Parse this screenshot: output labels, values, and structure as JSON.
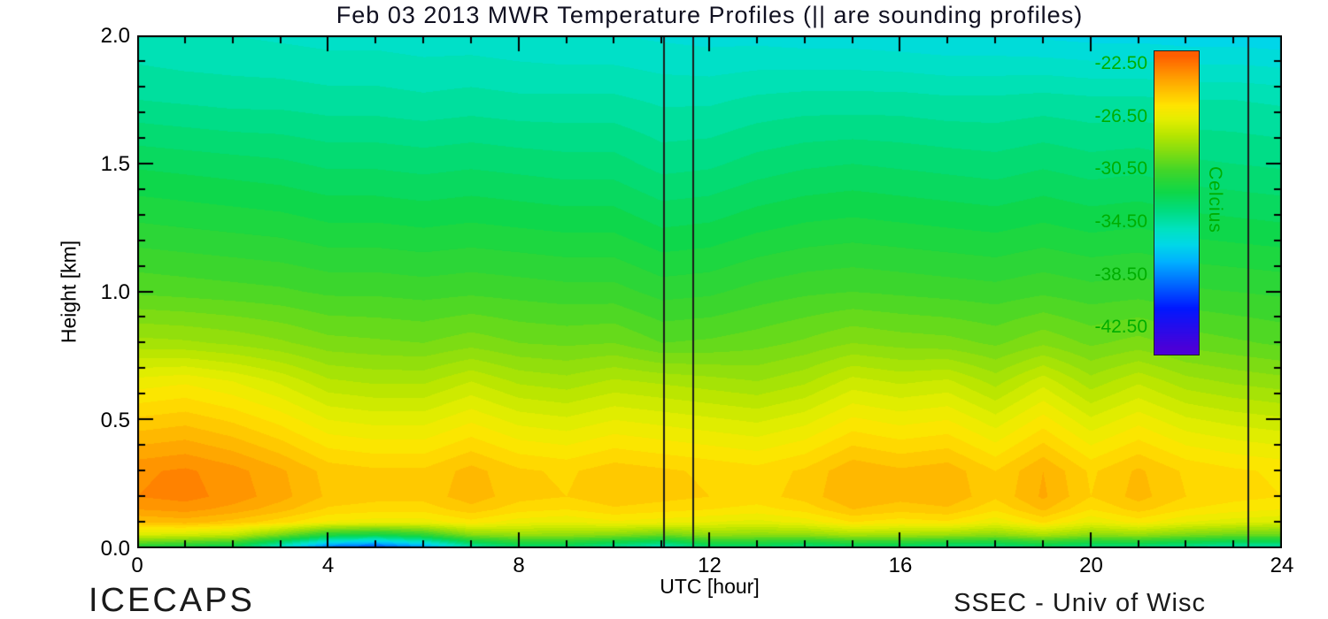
{
  "page": {
    "footer_left": "ICECAPS",
    "footer_right": "SSEC - Univ of Wisc"
  },
  "colorbar": {
    "unit": "Celcius",
    "label_color": "#00ae00",
    "top_value": -21.5,
    "bottom_value": -44.5,
    "tick_labels": [
      {
        "value": -22.5,
        "label": "-22.50"
      },
      {
        "value": -26.5,
        "label": "-26.50"
      },
      {
        "value": -30.5,
        "label": "-30.50"
      },
      {
        "value": -34.5,
        "label": "-34.50"
      },
      {
        "value": -38.5,
        "label": "-38.50"
      },
      {
        "value": -42.5,
        "label": "-42.50"
      }
    ]
  },
  "chart_data": {
    "type": "heatmap",
    "title": "Feb 03 2013 MWR Temperature Profiles (|| are sounding profiles)",
    "xlabel": "UTC [hour]",
    "ylabel": "Height [km]",
    "value_unit": "Celcius",
    "x_range_hours": [
      0,
      24
    ],
    "y_range_km": [
      0.0,
      2.0
    ],
    "x_major_ticks": [
      {
        "value": 0,
        "label": "0"
      },
      {
        "value": 4,
        "label": "4"
      },
      {
        "value": 8,
        "label": "8"
      },
      {
        "value": 12,
        "label": "12"
      },
      {
        "value": 16,
        "label": "16"
      },
      {
        "value": 20,
        "label": "20"
      },
      {
        "value": 24,
        "label": "24"
      }
    ],
    "x_minor_step": 1,
    "y_major_ticks": [
      {
        "value": 0.0,
        "label": "0.0"
      },
      {
        "value": 0.5,
        "label": "0.5"
      },
      {
        "value": 1.0,
        "label": "1.0"
      },
      {
        "value": 1.5,
        "label": "1.5"
      },
      {
        "value": 2.0,
        "label": "2.0"
      }
    ],
    "y_minor_step": 0.1,
    "contour_interval_c": 0.5,
    "sounding_profile_hours": [
      11.05,
      11.65,
      23.3
    ],
    "x_hours": [
      0,
      1,
      2,
      3,
      4,
      5,
      6,
      7,
      8,
      9,
      10,
      11,
      12,
      13,
      14,
      15,
      16,
      17,
      18,
      19,
      20,
      21,
      22,
      23,
      24
    ],
    "y_heights_km": [
      0.0,
      0.05,
      0.1,
      0.15,
      0.2,
      0.3,
      0.4,
      0.5,
      0.65,
      0.8,
      1.0,
      1.25,
      1.5,
      1.75,
      2.0
    ],
    "temps_c": [
      [
        -32.0,
        -32.5,
        -33.0,
        -36.0,
        -39.5,
        -40.5,
        -38.5,
        -35.0,
        -33.5,
        -33.5,
        -34.5,
        -35.5,
        -33.5,
        -33.5,
        -34.0,
        -33.5,
        -33.5,
        -34.0,
        -34.0,
        -33.5,
        -34.0,
        -34.0,
        -34.5,
        -35.0,
        -35.0
      ],
      [
        -27.0,
        -27.2,
        -27.6,
        -29.4,
        -31.6,
        -32.2,
        -31.2,
        -29.1,
        -28.7,
        -28.8,
        -29.1,
        -29.7,
        -28.8,
        -28.9,
        -28.9,
        -28.3,
        -28.4,
        -28.6,
        -29.0,
        -28.2,
        -29.0,
        -28.7,
        -29.3,
        -29.7,
        -29.8
      ],
      [
        -24.5,
        -24.3,
        -24.7,
        -25.3,
        -26.1,
        -26.3,
        -26.3,
        -25.7,
        -26.3,
        -26.5,
        -26.1,
        -26.3,
        -26.5,
        -26.7,
        -26.3,
        -25.5,
        -25.8,
        -25.6,
        -26.4,
        -25.4,
        -26.5,
        -25.8,
        -26.5,
        -26.8,
        -27.0
      ],
      [
        -23.5,
        -23.3,
        -23.7,
        -24.3,
        -25.1,
        -25.3,
        -25.3,
        -24.7,
        -25.3,
        -25.5,
        -25.1,
        -25.3,
        -25.5,
        -25.7,
        -25.3,
        -24.5,
        -24.8,
        -24.6,
        -25.4,
        -24.4,
        -25.5,
        -24.8,
        -25.5,
        -25.8,
        -26.0
      ],
      [
        -23.0,
        -22.8,
        -23.2,
        -23.8,
        -24.6,
        -24.8,
        -24.8,
        -24.2,
        -24.8,
        -25.0,
        -24.6,
        -24.8,
        -25.0,
        -25.2,
        -24.8,
        -24.0,
        -24.3,
        -24.1,
        -24.9,
        -23.9,
        -25.0,
        -24.3,
        -25.0,
        -25.3,
        -25.5
      ],
      [
        -23.1,
        -22.9,
        -23.3,
        -23.9,
        -24.7,
        -24.9,
        -24.9,
        -24.3,
        -24.9,
        -25.1,
        -24.7,
        -24.9,
        -25.1,
        -25.3,
        -24.9,
        -24.1,
        -24.4,
        -24.2,
        -25.0,
        -24.0,
        -25.1,
        -24.4,
        -25.1,
        -25.4,
        -25.6
      ],
      [
        -24.0,
        -23.8,
        -24.2,
        -24.8,
        -25.6,
        -25.8,
        -25.8,
        -25.2,
        -25.8,
        -26.0,
        -25.6,
        -25.8,
        -26.0,
        -26.2,
        -25.8,
        -25.0,
        -25.3,
        -25.1,
        -25.9,
        -24.9,
        -26.0,
        -25.3,
        -26.0,
        -26.3,
        -26.5
      ],
      [
        -24.9,
        -24.7,
        -25.1,
        -25.7,
        -26.5,
        -26.7,
        -26.7,
        -26.1,
        -26.7,
        -26.9,
        -26.5,
        -26.7,
        -26.9,
        -27.1,
        -26.7,
        -25.9,
        -26.2,
        -26.0,
        -26.8,
        -25.8,
        -26.9,
        -26.2,
        -26.9,
        -27.2,
        -27.4
      ],
      [
        -26.3,
        -26.1,
        -26.5,
        -27.1,
        -27.9,
        -28.1,
        -28.1,
        -27.5,
        -28.1,
        -28.3,
        -27.9,
        -28.1,
        -28.3,
        -28.5,
        -28.1,
        -27.3,
        -27.6,
        -27.4,
        -28.2,
        -27.2,
        -28.3,
        -27.6,
        -28.3,
        -28.6,
        -28.8
      ],
      [
        -28.3,
        -28.4,
        -28.6,
        -28.9,
        -29.3,
        -29.4,
        -29.5,
        -29.2,
        -29.5,
        -29.6,
        -29.5,
        -30.0,
        -29.9,
        -29.7,
        -29.4,
        -29.0,
        -29.2,
        -29.3,
        -29.6,
        -29.1,
        -29.6,
        -29.3,
        -29.7,
        -29.9,
        -30.1
      ],
      [
        -30.1,
        -30.2,
        -30.3,
        -30.4,
        -30.6,
        -30.6,
        -30.7,
        -30.6,
        -30.7,
        -30.8,
        -30.8,
        -31.2,
        -31.1,
        -30.8,
        -30.6,
        -30.5,
        -30.6,
        -30.7,
        -30.8,
        -30.6,
        -30.8,
        -30.7,
        -30.9,
        -31.0,
        -31.1
      ],
      [
        -31.4,
        -31.5,
        -31.6,
        -31.7,
        -31.9,
        -31.9,
        -32.0,
        -31.9,
        -32.0,
        -32.1,
        -32.1,
        -32.5,
        -32.4,
        -32.1,
        -31.9,
        -31.8,
        -31.9,
        -32.0,
        -32.1,
        -31.9,
        -32.1,
        -32.0,
        -32.2,
        -32.3,
        -32.4
      ],
      [
        -32.6,
        -32.7,
        -32.8,
        -32.9,
        -33.1,
        -33.1,
        -33.2,
        -33.1,
        -33.2,
        -33.3,
        -33.3,
        -33.7,
        -33.6,
        -33.3,
        -33.1,
        -33.0,
        -33.1,
        -33.2,
        -33.3,
        -33.1,
        -33.3,
        -33.2,
        -33.4,
        -33.5,
        -33.6
      ],
      [
        -34.0,
        -34.1,
        -34.2,
        -34.2,
        -34.3,
        -34.3,
        -34.4,
        -34.3,
        -34.4,
        -34.4,
        -34.4,
        -34.6,
        -34.6,
        -34.4,
        -34.3,
        -34.3,
        -34.3,
        -34.4,
        -34.4,
        -34.3,
        -34.4,
        -34.4,
        -34.5,
        -34.5,
        -34.6
      ],
      [
        -34.9,
        -35.0,
        -35.0,
        -35.1,
        -35.2,
        -35.2,
        -35.3,
        -35.3,
        -35.4,
        -35.5,
        -35.5,
        -35.6,
        -35.7,
        -35.7,
        -35.8,
        -35.8,
        -35.9,
        -36.0,
        -36.0,
        -36.1,
        -36.2,
        -36.2,
        -36.3,
        -36.3,
        -36.4
      ]
    ],
    "colormap_stops": [
      [
        -44.0,
        "#4b00d8"
      ],
      [
        -41.0,
        "#0018ff"
      ],
      [
        -39.0,
        "#0070ff"
      ],
      [
        -37.5,
        "#00b0ff"
      ],
      [
        -36.2,
        "#00d8e8"
      ],
      [
        -35.0,
        "#00e2c0"
      ],
      [
        -33.6,
        "#00dc80"
      ],
      [
        -32.2,
        "#0fd749"
      ],
      [
        -30.6,
        "#3fd62a"
      ],
      [
        -29.2,
        "#7fdc12"
      ],
      [
        -27.8,
        "#b9e600"
      ],
      [
        -26.6,
        "#e6ee00"
      ],
      [
        -25.6,
        "#ffe400"
      ],
      [
        -24.6,
        "#ffc400"
      ],
      [
        -23.6,
        "#ffa200"
      ],
      [
        -22.8,
        "#ff8400"
      ],
      [
        -21.8,
        "#ff5e00"
      ]
    ]
  }
}
